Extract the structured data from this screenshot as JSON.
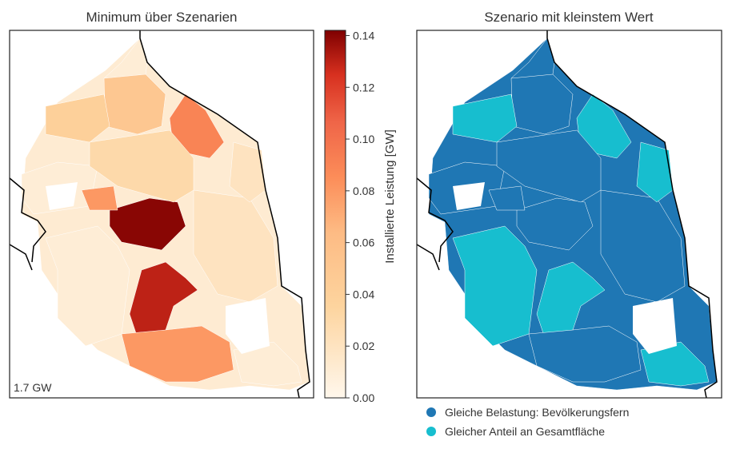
{
  "chart_data": [
    {
      "type": "choropleth",
      "title": "Minimum über Szenarien",
      "annotation": "1.7 GW",
      "colorbar": {
        "label": "Installierte Leistung [GW]",
        "range": [
          0,
          0.142
        ],
        "ticks": [
          "0.00",
          "0.02",
          "0.04",
          "0.06",
          "0.08",
          "0.10",
          "0.12",
          "0.14"
        ],
        "colormap": "OrRd"
      },
      "regions": [
        {
          "id": "north",
          "value": 0.01
        },
        {
          "id": "north-center",
          "value": 0.05
        },
        {
          "id": "northeast",
          "value": 0.09
        },
        {
          "id": "west",
          "value": 0.04
        },
        {
          "id": "west-strip",
          "value": 0.01
        },
        {
          "id": "center",
          "value": 0.14
        },
        {
          "id": "center-west",
          "value": 0.08
        },
        {
          "id": "southwest",
          "value": 0.01
        },
        {
          "id": "south-center",
          "value": 0.13
        },
        {
          "id": "south",
          "value": 0.08
        },
        {
          "id": "east",
          "value": 0.02
        },
        {
          "id": "southeast",
          "value": 0.01
        },
        {
          "id": "east-strip",
          "value": 0.02
        },
        {
          "id": "middle",
          "value": 0.03
        }
      ]
    },
    {
      "type": "choropleth",
      "title": "Szenario mit kleinstem Wert",
      "legend": [
        {
          "label": "Gleiche Belastung: Bevölkerungsfern",
          "color": "#1f77b4"
        },
        {
          "label": "Gleicher Anteil an Gesamtfläche",
          "color": "#17becf"
        }
      ],
      "legend_placement": "bottom",
      "regions": [
        {
          "id": "north",
          "category": 0
        },
        {
          "id": "north-center",
          "category": 0
        },
        {
          "id": "northeast",
          "category": 1
        },
        {
          "id": "west",
          "category": 1
        },
        {
          "id": "west-strip",
          "category": 0
        },
        {
          "id": "center",
          "category": 0
        },
        {
          "id": "center-west",
          "category": 0
        },
        {
          "id": "southwest",
          "category": 1
        },
        {
          "id": "south-center",
          "category": 1
        },
        {
          "id": "south",
          "category": 0
        },
        {
          "id": "east",
          "category": 0
        },
        {
          "id": "southeast",
          "category": 1
        },
        {
          "id": "east-strip",
          "category": 1
        },
        {
          "id": "middle",
          "category": 0
        }
      ]
    }
  ]
}
